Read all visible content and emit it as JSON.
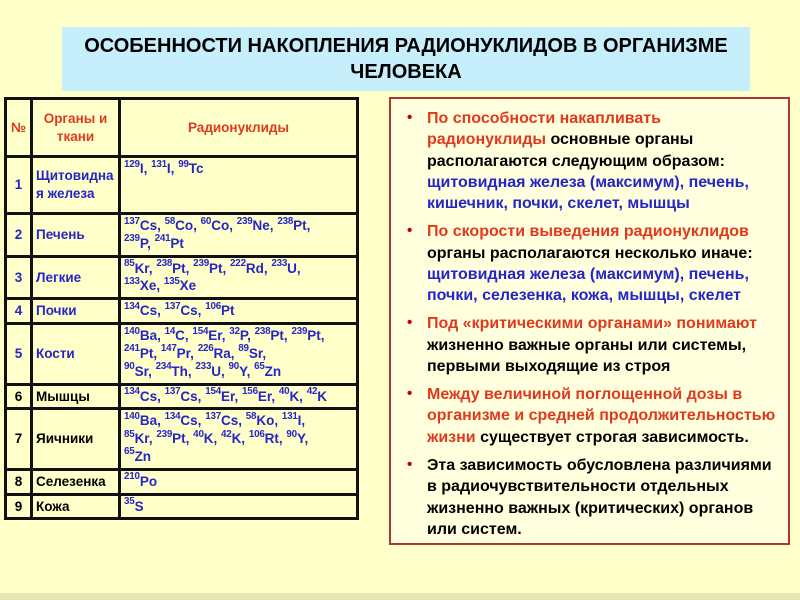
{
  "slide": {
    "title": "ОСОБЕННОСТИ НАКОПЛЕНИЯ РАДИОНУКЛИДОВ В ОРГАНИЗМЕ ЧЕЛОВЕКА"
  },
  "colors": {
    "red": "#e0391e",
    "blue": "#2525c8",
    "black": "#000000",
    "title_bg": "#c6eefb",
    "slide_bg": "#ffffc9",
    "panel_bg": "#ffffde",
    "panel_border": "#a83832",
    "bullet_dot": "#c00000"
  },
  "table": {
    "headers": {
      "num": "№",
      "organ": "Органы и ткани",
      "nuclides": "Радионуклиды"
    },
    "rows": [
      {
        "num": "1",
        "organ": "Щитовидная железа",
        "ink": "blue",
        "nuclide_lines": [
          [
            [
              "129",
              "I"
            ],
            [
              "131",
              "I"
            ],
            [
              "99",
              "Tc"
            ]
          ]
        ]
      },
      {
        "num": "2",
        "organ": "Печень",
        "ink": "blue",
        "nuclide_lines": [
          [
            [
              "137",
              "Cs"
            ],
            [
              "58",
              "Co"
            ],
            [
              "60",
              "Co"
            ],
            [
              "239",
              "Ne"
            ],
            [
              "238",
              "Pt"
            ]
          ],
          [
            [
              "239",
              "P"
            ],
            [
              "241",
              "Pt"
            ]
          ]
        ]
      },
      {
        "num": "3",
        "organ": "Легкие",
        "ink": "blue",
        "nuclide_lines": [
          [
            [
              "85",
              "Kr"
            ],
            [
              "238",
              "Pt"
            ],
            [
              "239",
              "Pt"
            ],
            [
              "222",
              "Rd"
            ],
            [
              "233",
              "U"
            ]
          ],
          [
            [
              "133",
              "Xe"
            ],
            [
              "135",
              "Xe"
            ]
          ]
        ]
      },
      {
        "num": "4",
        "organ": "Почки",
        "ink": "blue",
        "nuclide_lines": [
          [
            [
              "134",
              "Cs"
            ],
            [
              "137",
              "Cs"
            ],
            [
              "106",
              "Pt"
            ]
          ]
        ]
      },
      {
        "num": "5",
        "organ": "Кости",
        "ink": "blue",
        "nuclide_lines": [
          [
            [
              "140",
              "Ba"
            ],
            [
              "14",
              "C"
            ],
            [
              "154",
              "Er"
            ],
            [
              "32",
              "P"
            ],
            [
              "238",
              "Pt"
            ],
            [
              "239",
              "Pt"
            ]
          ],
          [
            [
              "241",
              "Pt"
            ],
            [
              "147",
              "Pr"
            ],
            [
              "226",
              "Ra"
            ],
            [
              "89",
              "Sr"
            ]
          ],
          [
            [
              "90",
              "Sr"
            ],
            [
              "234",
              "Th"
            ],
            [
              "233",
              "U"
            ],
            [
              "90",
              "Y"
            ],
            [
              "65",
              "Zn"
            ]
          ]
        ]
      },
      {
        "num": "6",
        "organ": "Мышцы",
        "ink": "black",
        "nuclide_lines": [
          [
            [
              "134",
              "Cs"
            ],
            [
              "137",
              "Cs"
            ],
            [
              "154",
              "Er"
            ],
            [
              "156",
              "Er"
            ],
            [
              "40",
              "K"
            ],
            [
              "42",
              "K"
            ]
          ]
        ]
      },
      {
        "num": "7",
        "organ": "Яичники",
        "ink": "black",
        "nuclide_lines": [
          [
            [
              "140",
              "Ba"
            ],
            [
              "134",
              "Cs"
            ],
            [
              "137",
              "Cs"
            ],
            [
              "58",
              "Ko"
            ],
            [
              "131",
              "I"
            ]
          ],
          [
            [
              "85",
              "Kr"
            ],
            [
              "239",
              "Pt"
            ],
            [
              "40",
              "K"
            ],
            [
              "42",
              "K"
            ],
            [
              "106",
              "Rt"
            ],
            [
              "90",
              "Y"
            ]
          ],
          [
            [
              "65",
              "Zn"
            ]
          ]
        ]
      },
      {
        "num": "8",
        "organ": "Селезенка",
        "ink": "black",
        "nuclide_lines": [
          [
            [
              "210",
              "Po"
            ]
          ]
        ]
      },
      {
        "num": "9",
        "organ": "Кожа",
        "ink": "black",
        "nuclide_lines": [
          [
            [
              "35",
              "S"
            ]
          ]
        ]
      }
    ]
  },
  "panel": {
    "bullet_glyph": "•",
    "bullets": [
      {
        "segments": [
          {
            "text": "По способности накапливать радионуклиды ",
            "color": "red"
          },
          {
            "text": "основные органы располагаются следующим образом: ",
            "color": "black"
          },
          {
            "text": "щитовидная железа (максимум), печень, кишечник, почки, скелет, мышцы",
            "color": "blue"
          }
        ]
      },
      {
        "segments": [
          {
            "text": "По скорости выведения радионуклидов ",
            "color": "red"
          },
          {
            "text": "органы располагаются несколько иначе: ",
            "color": "black"
          },
          {
            "text": "щитовидная железа (максимум), печень, почки, селезенка, кожа, мышцы, скелет",
            "color": "blue"
          }
        ]
      },
      {
        "segments": [
          {
            "text": "Под «критическими органами» понимают ",
            "color": "red"
          },
          {
            "text": "жизненно важные органы или системы, первыми выходящие из строя",
            "color": "black"
          }
        ]
      },
      {
        "segments": [
          {
            "text": "Между величиной поглощенной дозы в организме и средней продолжительностью жизни ",
            "color": "red"
          },
          {
            "text": "существует строгая зависимость.",
            "color": "black"
          }
        ]
      },
      {
        "segments": [
          {
            "text": "Эта зависимость обусловлена различиями в радиочувствительности отдельных жизненно важных (критических) органов или систем.",
            "color": "black"
          }
        ]
      }
    ]
  }
}
